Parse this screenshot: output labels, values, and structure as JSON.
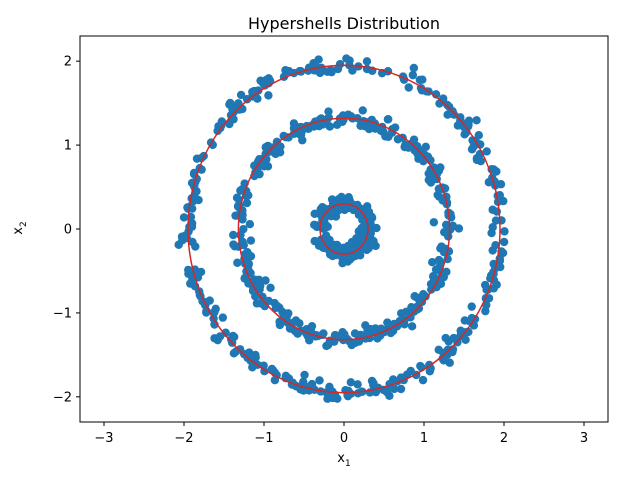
{
  "chart_data": {
    "type": "scatter",
    "title": "Hypershells Distribution",
    "xlabel": {
      "base": "x",
      "sub": "1"
    },
    "ylabel": {
      "base": "x",
      "sub": "2"
    },
    "xlim": [
      -3.3,
      3.3
    ],
    "ylim": [
      -2.3,
      2.3
    ],
    "xticks": [
      -3,
      -2,
      -1,
      0,
      1,
      2,
      3
    ],
    "yticks": [
      -2,
      -1,
      0,
      1,
      2
    ],
    "xtick_labels": [
      "−3",
      "−2",
      "−1",
      "0",
      "1",
      "2",
      "3"
    ],
    "ytick_labels": [
      "−2",
      "−1",
      "0",
      "1",
      "2"
    ],
    "grid": false,
    "legend": "none",
    "colors": {
      "points": "#1f77b4",
      "circles": "#d62728"
    },
    "shells": [
      {
        "radius": 0.3,
        "point_count": 200,
        "noise": 0.05
      },
      {
        "radius": 1.3,
        "point_count": 350,
        "noise": 0.05
      },
      {
        "radius": 1.95,
        "point_count": 350,
        "noise": 0.05
      }
    ],
    "circles": [
      {
        "radius": 0.3
      },
      {
        "radius": 1.32
      },
      {
        "radius": 1.95
      }
    ]
  }
}
